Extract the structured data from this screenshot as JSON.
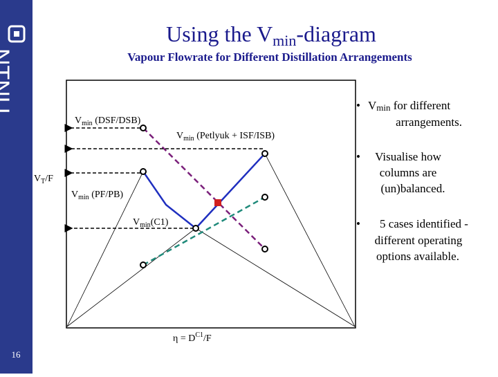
{
  "header": {
    "title_a": "Using the V",
    "title_sub": "min",
    "title_b": "-diagram",
    "subtitle": "Vapour Flowrate for Different Distillation Arrangements",
    "logo": "NTNU",
    "page_number": "16"
  },
  "labels": {
    "dsf": {
      "v": "V",
      "sub": "min",
      "rest": " (DSF/DSB)"
    },
    "petlyuk": {
      "v": "V",
      "sub": "min",
      "rest": " (Petlyuk + ISF/ISB)"
    },
    "vt": {
      "v": "V",
      "sub": "T",
      "rest": "/F"
    },
    "pf": {
      "v": "V",
      "sub": "min",
      "rest": " (PF/PB)"
    },
    "c1": {
      "v": "V",
      "sub": "min",
      "rest": "(C1)"
    },
    "eta": {
      "a": "η = D",
      "sup": "C1",
      "b": "/F"
    }
  },
  "bullets": [
    {
      "v": "V",
      "sub": "min",
      "line1": " for different",
      "line2": "arrangements."
    },
    {
      "line1": "Visualise how",
      "line2": "columns are",
      "line3": "(un)balanced."
    },
    {
      "line1": "5 cases identified -",
      "line2": "different operating",
      "line3": "options available."
    }
  ]
}
